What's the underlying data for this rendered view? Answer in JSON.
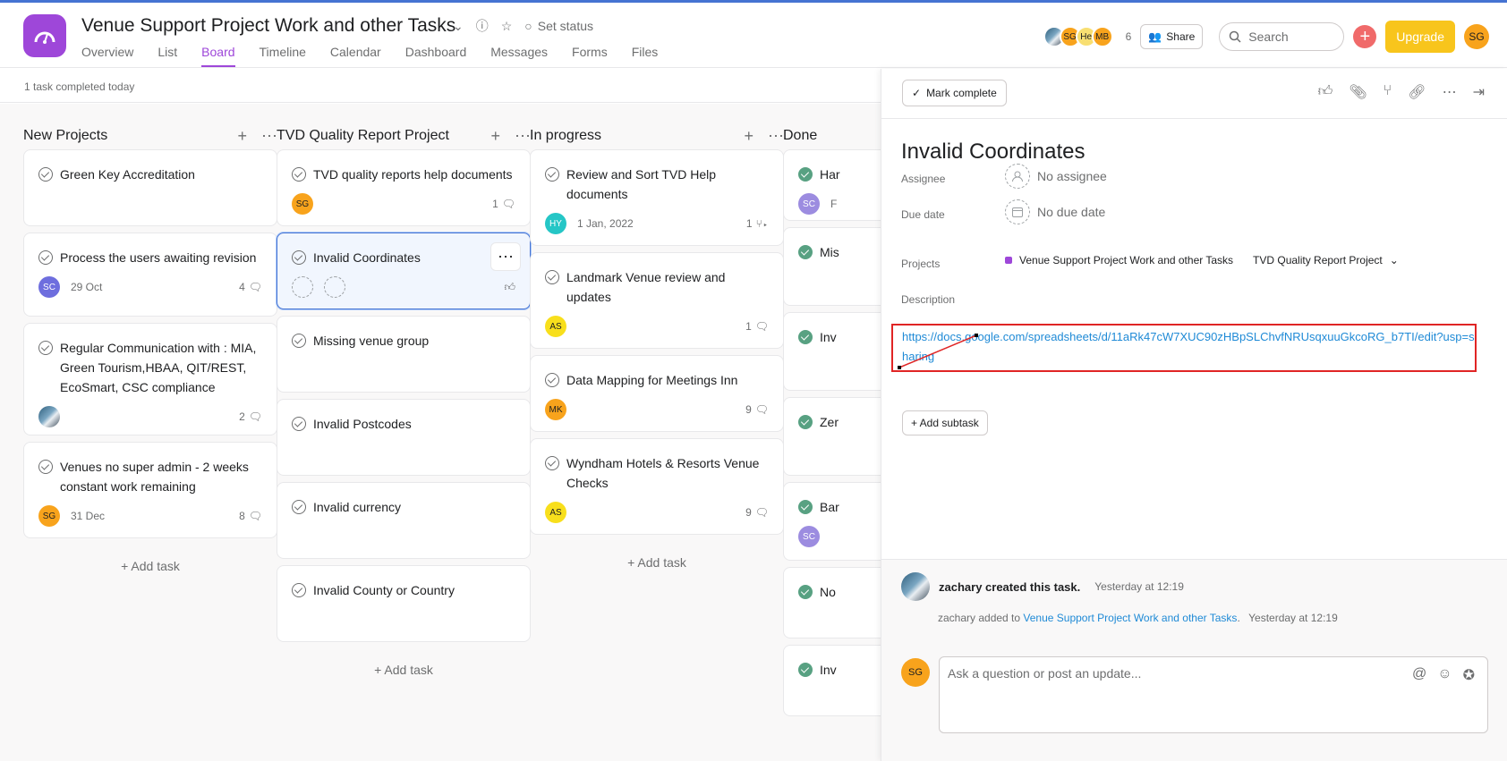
{
  "project": {
    "title": "Venue Support Project Work and other Tasks",
    "set_status": "Set status",
    "tabs": [
      "Overview",
      "List",
      "Board",
      "Timeline",
      "Calendar",
      "Dashboard",
      "Messages",
      "Forms",
      "Files"
    ],
    "active_tab": "Board"
  },
  "header": {
    "members": [
      {
        "initials": "",
        "color": "#3b6e8f"
      },
      {
        "initials": "SG",
        "color": "#f8a31c"
      },
      {
        "initials": "He",
        "color": "#f8df72"
      },
      {
        "initials": "MB",
        "color": "#f8a31c"
      }
    ],
    "member_count": "6",
    "share_label": "Share",
    "search_placeholder": "Search",
    "upgrade_label": "Upgrade",
    "me_initials": "SG"
  },
  "subbar": {
    "status_text": "1 task completed today"
  },
  "columns": [
    {
      "title": "New Projects",
      "add_task": "+ Add task",
      "cards": [
        {
          "title": "Green Key Accreditation"
        },
        {
          "title": "Process the users awaiting revision",
          "avatar": "SC",
          "avatar_color": "#6e6ede",
          "date": "29 Oct",
          "comments": "4"
        },
        {
          "title": "Regular Communication with : MIA, Green Tourism,HBAA, QIT/REST, EcoSmart, CSC compliance",
          "photo": true,
          "comments": "2"
        },
        {
          "title": "Venues no super admin - 2 weeks constant work remaining",
          "avatar": "SG",
          "avatar_color": "#f8a31c",
          "date": "31 Dec",
          "comments": "8"
        }
      ]
    },
    {
      "title": "TVD Quality Report Project",
      "add_task": "+ Add task",
      "cards": [
        {
          "title": "TVD quality reports help documents",
          "avatar": "SG",
          "avatar_color": "#f8a31c",
          "comments": "1"
        },
        {
          "title": "Invalid Coordinates",
          "selected": true
        },
        {
          "title": "Missing venue group"
        },
        {
          "title": "Invalid Postcodes"
        },
        {
          "title": "Invalid currency"
        },
        {
          "title": "Invalid County or Country"
        }
      ]
    },
    {
      "title": "In progress",
      "add_task": "+ Add task",
      "cards": [
        {
          "title": "Review and Sort TVD Help documents",
          "avatar": "HY",
          "avatar_color": "#25c6c6",
          "date": "1 Jan, 2022",
          "subtasks": "1"
        },
        {
          "title": "Landmark Venue review and updates",
          "avatar": "AS",
          "avatar_color": "#f8df1c",
          "comments": "1"
        },
        {
          "title": "Data Mapping for Meetings Inn",
          "avatar": "MK",
          "avatar_color": "#f8a31c",
          "comments": "9"
        },
        {
          "title": "Wyndham Hotels & Resorts Venue Checks",
          "avatar": "AS",
          "avatar_color": "#f8df1c",
          "comments": "9"
        }
      ]
    },
    {
      "title": "Done",
      "cards": [
        {
          "title": "Har",
          "avatar": "SC",
          "avatar_color": "#9c8ce0",
          "date": "F"
        },
        {
          "title": "Mis"
        },
        {
          "title": "Inv"
        },
        {
          "title": "Zer"
        },
        {
          "title": "Bar",
          "avatar": "SC",
          "avatar_color": "#9c8ce0"
        },
        {
          "title": "No"
        },
        {
          "title": "Inv"
        }
      ]
    }
  ],
  "panel": {
    "mark_complete": "Mark complete",
    "task_title": "Invalid Coordinates",
    "assignee_label": "Assignee",
    "assignee_value": "No assignee",
    "due_label": "Due date",
    "due_value": "No due date",
    "projects_label": "Projects",
    "project_1": "Venue Support Project Work and other Tasks",
    "project_2": "TVD Quality Report Project",
    "description_label": "Description",
    "description_link": "https://docs.google.com/spreadsheets/d/11aRk47cW7XUC90zHBpSLChvfNRUsqxuuGkcoRG_b7TI/edit?usp=sharing",
    "add_subtask": "+ Add subtask",
    "feed_user": "zachary",
    "feed_created": "zachary created this task.",
    "feed_created_time": "Yesterday at 12:19",
    "feed_added_prefix": "zachary added to",
    "feed_added_project": "Venue Support Project Work and other Tasks",
    "feed_added_time": "Yesterday at 12:19",
    "comment_placeholder": "Ask a question or post an update...",
    "me_initials": "SG"
  }
}
